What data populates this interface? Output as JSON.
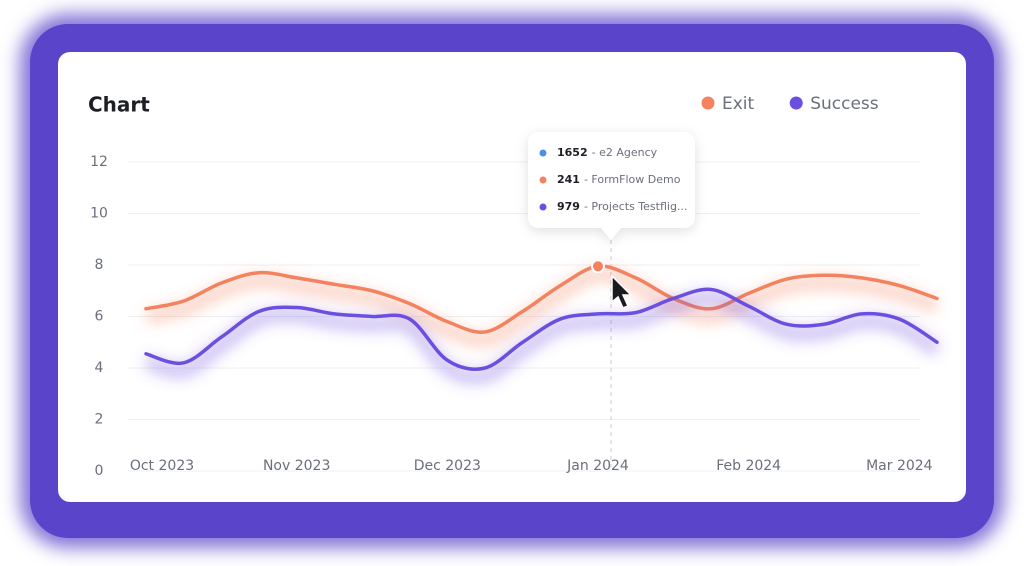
{
  "chart_data": {
    "type": "line",
    "title": "Chart",
    "categories": [
      "Oct 2023",
      null,
      null,
      null,
      "Nov 2023",
      null,
      null,
      null,
      "Dec 2023",
      null,
      null,
      null,
      "Jan 2024",
      null,
      null,
      null,
      "Feb 2024",
      null,
      null,
      null,
      "Mar 2024",
      null
    ],
    "series": [
      {
        "name": "Exit",
        "color": "#f4825f",
        "values": [
          6.3,
          6.6,
          7.3,
          7.7,
          7.5,
          7.25,
          7.0,
          6.5,
          5.8,
          5.4,
          6.2,
          7.2,
          7.95,
          7.5,
          6.7,
          6.3,
          6.9,
          7.45,
          7.6,
          7.5,
          7.2,
          6.7
        ]
      },
      {
        "name": "Success",
        "color": "#6c4fe0",
        "values": [
          4.55,
          4.2,
          5.2,
          6.2,
          6.35,
          6.1,
          6.0,
          5.9,
          4.3,
          4.0,
          5.0,
          5.9,
          6.1,
          6.15,
          6.7,
          7.05,
          6.4,
          5.7,
          5.7,
          6.1,
          5.9,
          5.0
        ]
      }
    ],
    "ylim": [
      0,
      12
    ],
    "yticks": [
      0,
      2,
      4,
      6,
      8,
      10,
      12
    ],
    "grid": true,
    "legend": "top-right",
    "tooltip": [
      {
        "value": 1652,
        "label": "- e2 Agency",
        "color": "#4a90e8"
      },
      {
        "value": 241,
        "label": "- FormFlow Demo",
        "color": "#f4825f"
      },
      {
        "value": 979,
        "label": "- Projects Testflig...",
        "color": "#6c4fe0"
      }
    ]
  }
}
